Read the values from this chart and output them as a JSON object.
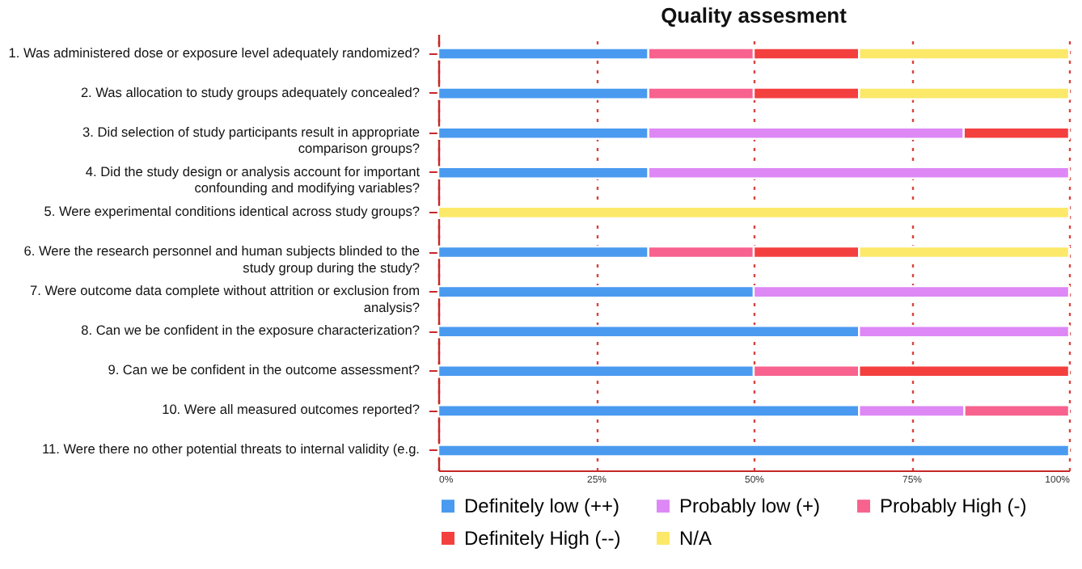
{
  "chart_data": {
    "type": "bar",
    "title": "Quality assesment",
    "orientation": "horizontal",
    "stacked": true,
    "categories": [
      "1. Was administered dose or exposure level adequately randomized?",
      "2. Was allocation to study groups adequately concealed?",
      "3. Did selection of study participants result in appropriate comparison groups?",
      "4. Did the study design or analysis account for important confounding and modifying variables?",
      "5. Were experimental conditions identical across study groups?",
      "6. Were the research personnel and human subjects blinded to the study group during the study?",
      "7. Were outcome data complete without attrition or exclusion from analysis?",
      "8. Can we be confident in the exposure characterization?",
      "9. Can we be confident in the outcome assessment?",
      "10. Were all measured outcomes reported?",
      "11. Were there no other potential threats to internal validity (e.g."
    ],
    "series": [
      {
        "name": "Definitely low (++)",
        "color": "#4a9af0",
        "values": [
          33.3,
          33.3,
          33.3,
          33.3,
          0,
          33.3,
          50,
          66.7,
          50,
          66.7,
          100
        ]
      },
      {
        "name": "Probably low (+)",
        "color": "#dd88f5",
        "values": [
          0,
          0,
          50,
          66.7,
          0,
          0,
          50,
          33.3,
          0,
          16.7,
          0
        ]
      },
      {
        "name": "Probably High (-)",
        "color": "#f7628f",
        "values": [
          16.7,
          16.7,
          0,
          0,
          0,
          16.7,
          0,
          0,
          16.7,
          16.6,
          0
        ]
      },
      {
        "name": "Definitely High (--)",
        "color": "#f43f3f",
        "values": [
          16.7,
          16.7,
          16.7,
          0,
          0,
          16.7,
          0,
          0,
          33.3,
          0,
          0
        ]
      },
      {
        "name": "N/A",
        "color": "#fce96a",
        "values": [
          33.3,
          33.3,
          0,
          0,
          100,
          33.3,
          0,
          0,
          0,
          0,
          0
        ]
      }
    ],
    "xlim": [
      0,
      100
    ],
    "xticks": [
      {
        "value": 0,
        "label": "0%"
      },
      {
        "value": 25,
        "label": "25%"
      },
      {
        "value": 50,
        "label": "50%"
      },
      {
        "value": 75,
        "label": "75%"
      },
      {
        "value": 100,
        "label": "100%"
      }
    ],
    "grid": "x",
    "legend": "bottom"
  }
}
